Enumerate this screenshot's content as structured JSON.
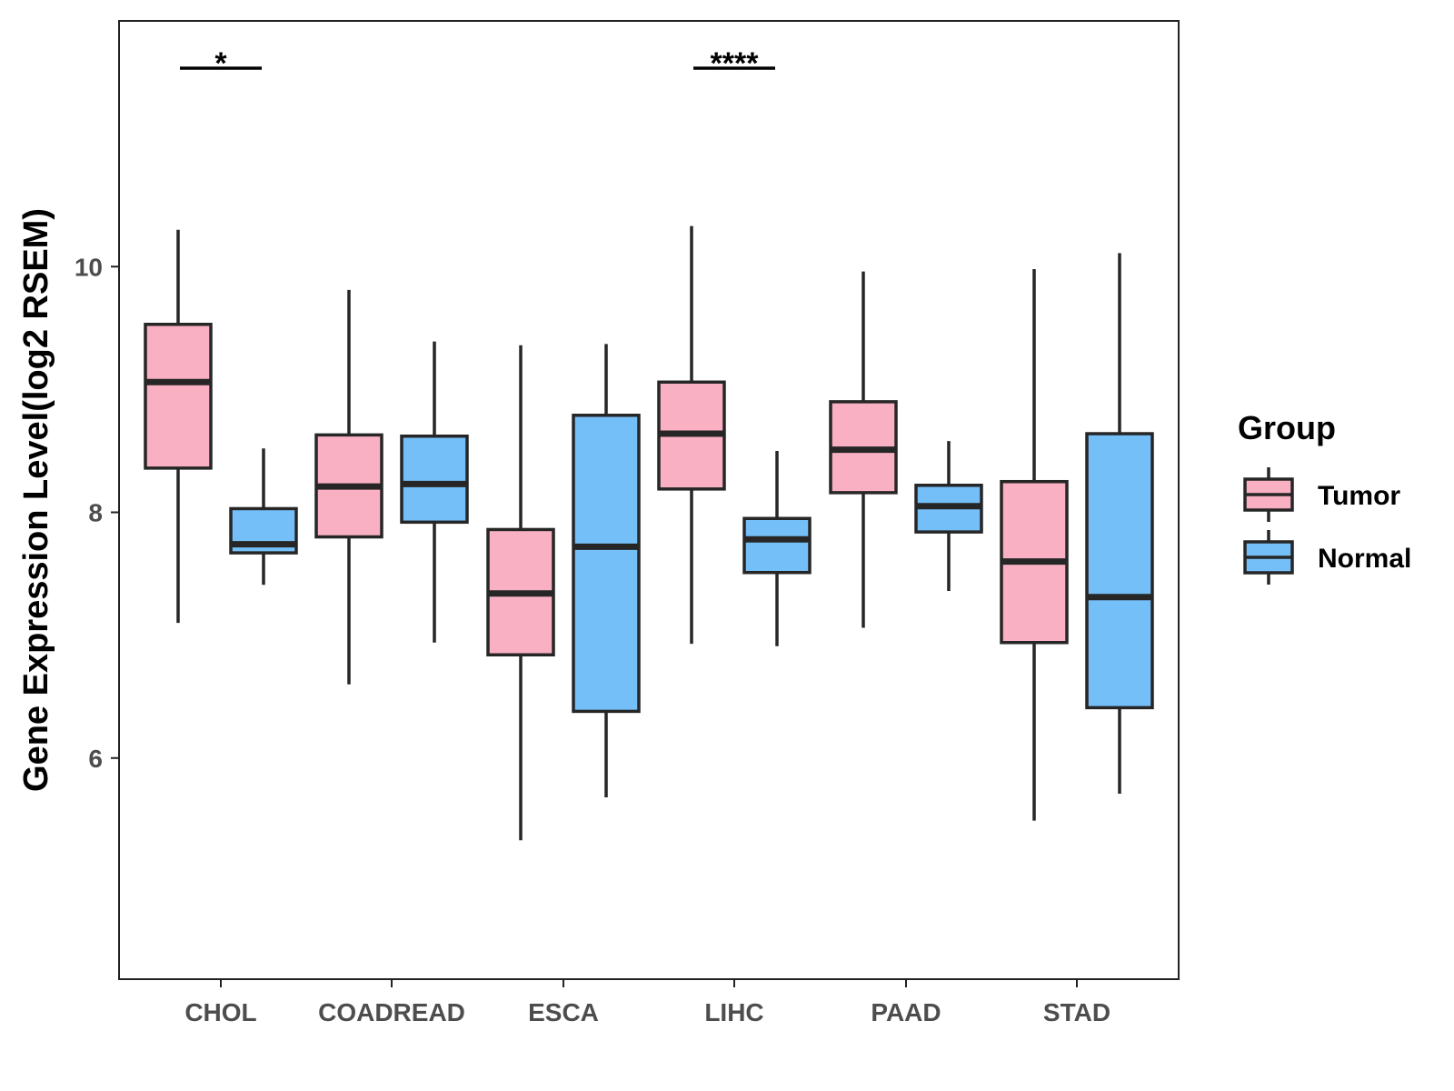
{
  "chart_data": {
    "type": "boxplot",
    "title": "",
    "xlabel": "",
    "ylabel": "Gene Expression Level(log2 RSEM)",
    "ylim": [
      4.2,
      12.0
    ],
    "yticks": [
      6,
      8,
      10
    ],
    "ytick_labels": [
      "6",
      "8",
      "10"
    ],
    "categories": [
      "CHOL",
      "COADREAD",
      "ESCA",
      "LIHC",
      "PAAD",
      "STAD"
    ],
    "legend": {
      "title": "Group",
      "position": "right",
      "entries": [
        {
          "name": "Tumor",
          "color": "#F9B0C3"
        },
        {
          "name": "Normal",
          "color": "#75BFF8"
        }
      ]
    },
    "series": [
      {
        "name": "Tumor",
        "color": "#F9B0C3",
        "boxes": [
          {
            "category": "CHOL",
            "whisker_low": 7.1,
            "q1": 8.36,
            "median": 9.06,
            "q3": 9.53,
            "whisker_high": 10.3
          },
          {
            "category": "COADREAD",
            "whisker_low": 6.6,
            "q1": 7.8,
            "median": 8.21,
            "q3": 8.63,
            "whisker_high": 9.81
          },
          {
            "category": "ESCA",
            "whisker_low": 5.33,
            "q1": 6.84,
            "median": 7.34,
            "q3": 7.86,
            "whisker_high": 9.36
          },
          {
            "category": "LIHC",
            "whisker_low": 6.93,
            "q1": 8.19,
            "median": 8.64,
            "q3": 9.06,
            "whisker_high": 10.33
          },
          {
            "category": "PAAD",
            "whisker_low": 7.06,
            "q1": 8.16,
            "median": 8.51,
            "q3": 8.9,
            "whisker_high": 9.96
          },
          {
            "category": "STAD",
            "whisker_low": 5.49,
            "q1": 6.94,
            "median": 7.6,
            "q3": 8.25,
            "whisker_high": 9.98
          }
        ]
      },
      {
        "name": "Normal",
        "color": "#75BFF8",
        "boxes": [
          {
            "category": "CHOL",
            "whisker_low": 7.41,
            "q1": 7.67,
            "median": 7.74,
            "q3": 8.03,
            "whisker_high": 8.52
          },
          {
            "category": "COADREAD",
            "whisker_low": 6.94,
            "q1": 7.92,
            "median": 8.23,
            "q3": 8.62,
            "whisker_high": 9.39
          },
          {
            "category": "ESCA",
            "whisker_low": 5.68,
            "q1": 6.38,
            "median": 7.72,
            "q3": 8.79,
            "whisker_high": 9.37
          },
          {
            "category": "LIHC",
            "whisker_low": 6.91,
            "q1": 7.51,
            "median": 7.78,
            "q3": 7.95,
            "whisker_high": 8.5
          },
          {
            "category": "PAAD",
            "whisker_low": 7.36,
            "q1": 7.84,
            "median": 8.05,
            "q3": 8.22,
            "whisker_high": 8.58
          },
          {
            "category": "STAD",
            "whisker_low": 5.71,
            "q1": 6.41,
            "median": 7.31,
            "q3": 8.64,
            "whisker_high": 10.11
          }
        ]
      }
    ],
    "annotations": [
      {
        "category": "CHOL",
        "label": "*"
      },
      {
        "category": "LIHC",
        "label": "****"
      }
    ]
  }
}
